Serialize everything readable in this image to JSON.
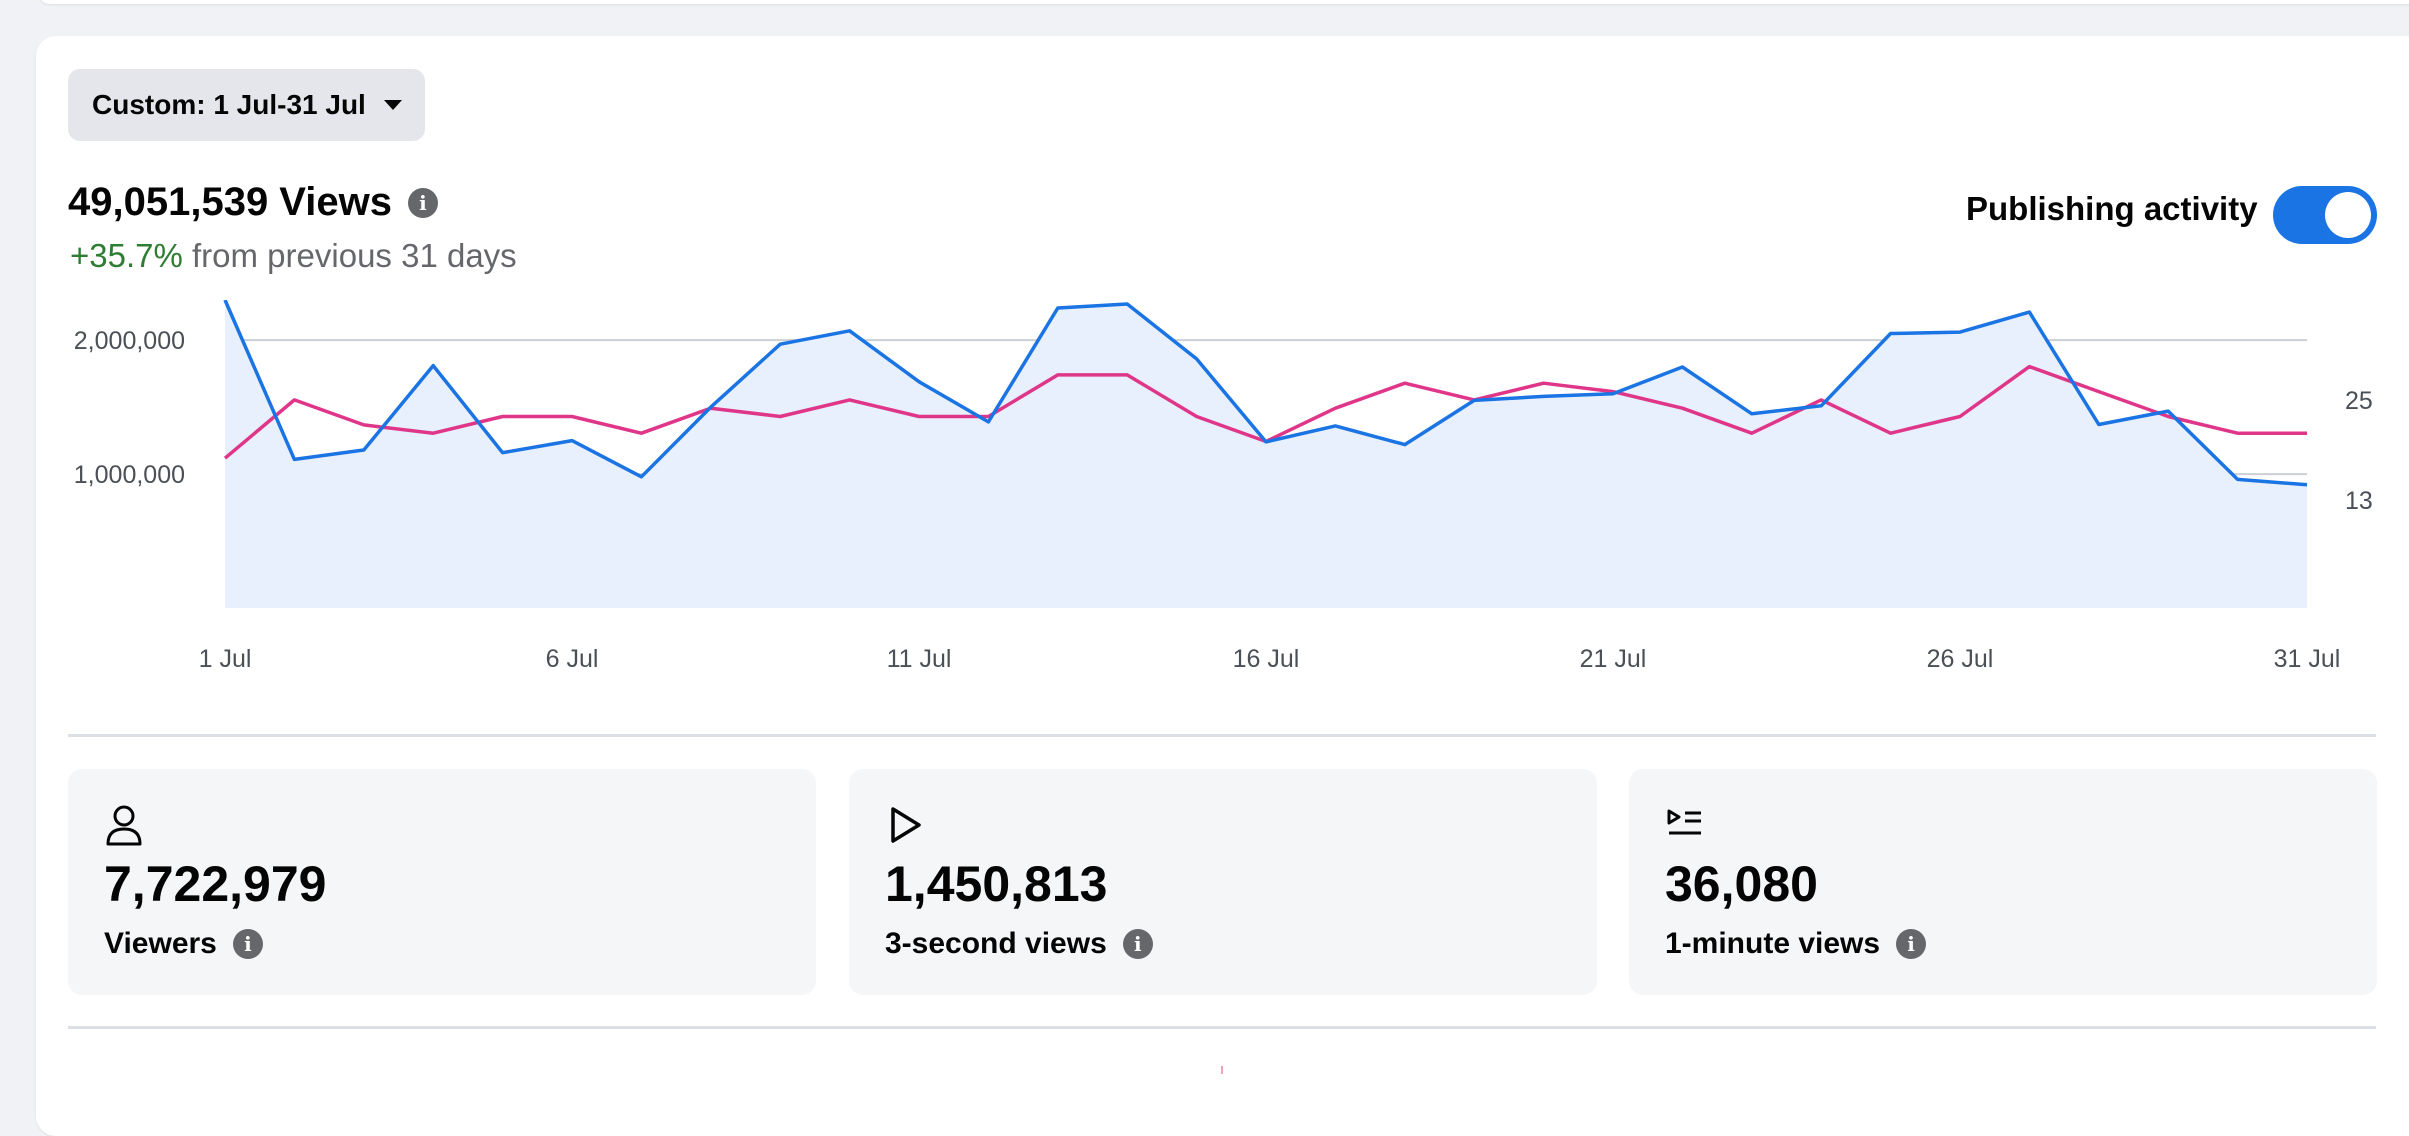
{
  "filter": {
    "date_range_label": "Custom: 1 Jul-31 Jul"
  },
  "summary": {
    "views_title": "49,051,539 Views",
    "delta_pct": "+35.7%",
    "delta_text": "from previous 31 days"
  },
  "publishing": {
    "label": "Publishing activity",
    "enabled": true
  },
  "colors": {
    "views_line": "#1b74e4",
    "views_fill": "#e7f0fc",
    "publishing_line": "#e0368a",
    "accent": "#1b74e4"
  },
  "chart_data": {
    "type": "line",
    "x": [
      "1 Jul",
      "2 Jul",
      "3 Jul",
      "4 Jul",
      "5 Jul",
      "6 Jul",
      "7 Jul",
      "8 Jul",
      "9 Jul",
      "10 Jul",
      "11 Jul",
      "12 Jul",
      "13 Jul",
      "14 Jul",
      "15 Jul",
      "16 Jul",
      "17 Jul",
      "18 Jul",
      "19 Jul",
      "20 Jul",
      "21 Jul",
      "22 Jul",
      "23 Jul",
      "24 Jul",
      "25 Jul",
      "26 Jul",
      "27 Jul",
      "28 Jul",
      "29 Jul",
      "30 Jul",
      "31 Jul"
    ],
    "x_tick_labels": [
      "1 Jul",
      "6 Jul",
      "11 Jul",
      "16 Jul",
      "21 Jul",
      "26 Jul",
      "31 Jul"
    ],
    "series": [
      {
        "axis": "left",
        "values": [
          2300000,
          1110000,
          1180000,
          1810000,
          1160000,
          1250000,
          980000,
          1500000,
          1970000,
          2070000,
          1690000,
          1390000,
          2240000,
          2270000,
          1860000,
          1240000,
          1360000,
          1220000,
          1550000,
          1580000,
          1600000,
          1800000,
          1450000,
          1510000,
          2050000,
          2060000,
          2210000,
          1370000,
          1470000,
          960000,
          920000
        ]
      },
      {
        "axis": "right",
        "values": [
          18,
          25,
          22,
          21,
          23,
          23,
          21,
          24,
          23,
          25,
          23,
          23,
          28,
          28,
          23,
          20,
          24,
          27,
          25,
          27,
          26,
          24,
          21,
          25,
          21,
          23,
          29,
          26,
          23,
          21,
          21
        ]
      }
    ],
    "y_left": {
      "ticks": [
        "1,000,000",
        "2,000,000"
      ],
      "range": [
        0,
        2300000
      ]
    },
    "y_right": {
      "ticks": [
        "13",
        "25"
      ],
      "range": [
        0,
        37
      ]
    },
    "grid": true
  },
  "stats": [
    {
      "icon": "person-icon",
      "value": "7,722,979",
      "label": "Viewers"
    },
    {
      "icon": "play-icon",
      "value": "1,450,813",
      "label": "3-second views"
    },
    {
      "icon": "play-list-icon",
      "value": "36,080",
      "label": "1-minute views"
    }
  ]
}
